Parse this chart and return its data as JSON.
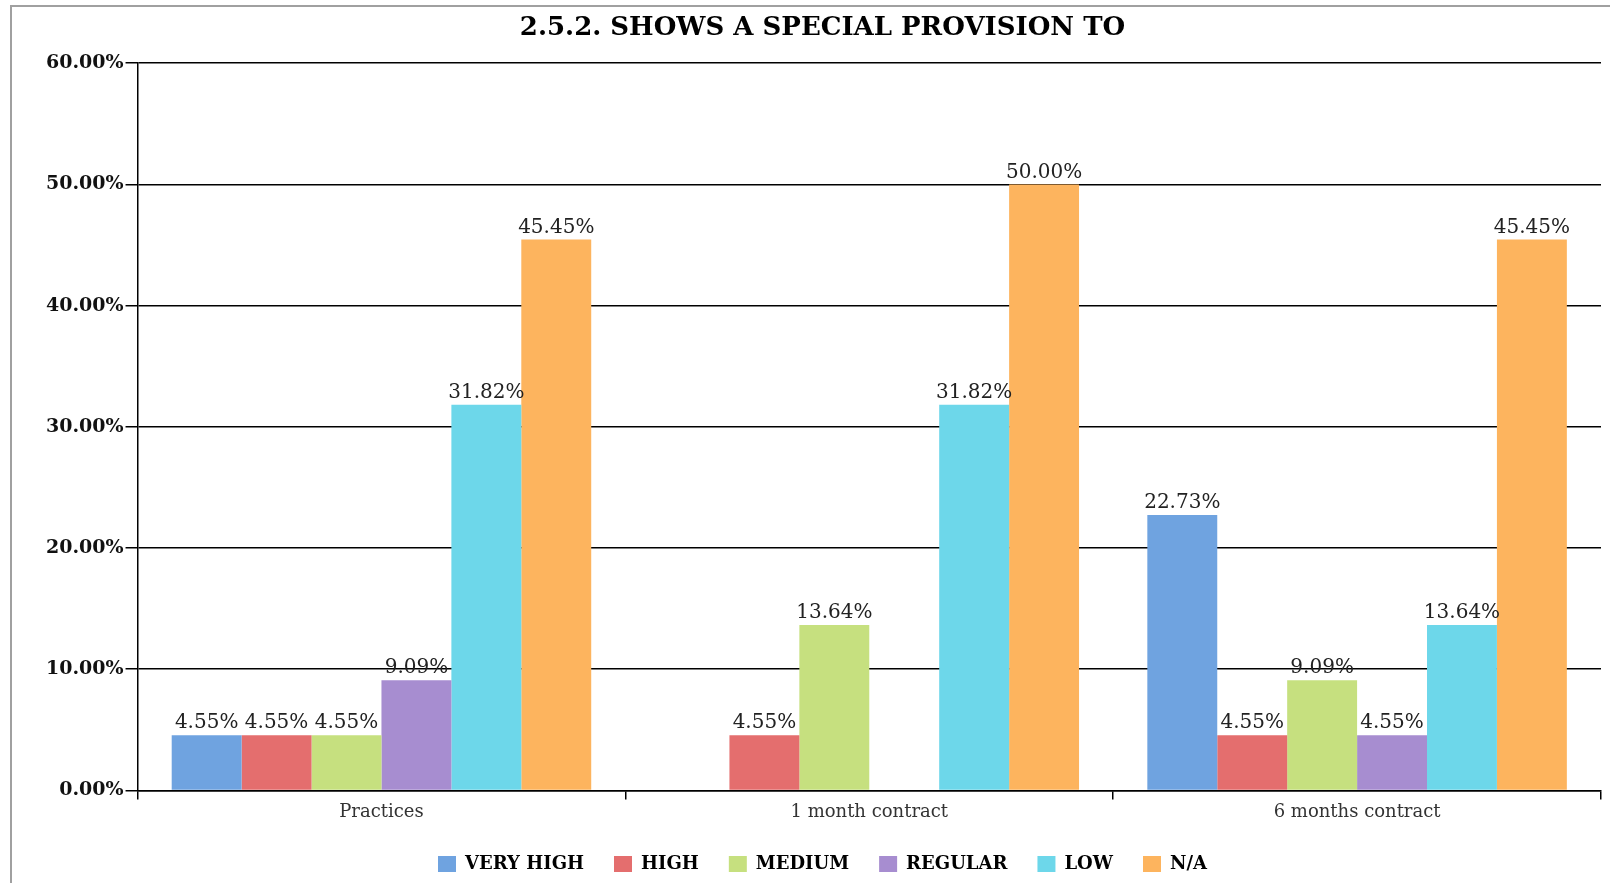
{
  "chart_data": {
    "type": "bar",
    "title": "2.5.2. SHOWS A SPECIAL PROVISION TO",
    "categories": [
      "Practices",
      "1 month contract",
      "6 months contract"
    ],
    "series": [
      {
        "name": "VERY HIGH",
        "color": "#6fa3e0",
        "values": [
          4.55,
          null,
          22.73
        ],
        "value_labels": [
          "4.55%",
          null,
          "22.73%"
        ]
      },
      {
        "name": "HIGH",
        "color": "#e46e6e",
        "values": [
          4.55,
          4.55,
          4.55
        ],
        "value_labels": [
          "4.55%",
          "4.55%",
          "4.55%"
        ]
      },
      {
        "name": "MEDIUM",
        "color": "#c6e07f",
        "values": [
          4.55,
          13.64,
          9.09
        ],
        "value_labels": [
          "4.55%",
          "13.64%",
          "9.09%"
        ]
      },
      {
        "name": "REGULAR",
        "color": "#a78dd0",
        "values": [
          9.09,
          null,
          4.55
        ],
        "value_labels": [
          "9.09%",
          null,
          "4.55%"
        ]
      },
      {
        "name": "LOW",
        "color": "#6dd7ea",
        "values": [
          31.82,
          31.82,
          13.64
        ],
        "value_labels": [
          "31.82%",
          "31.82%",
          "13.64%"
        ]
      },
      {
        "name": "N/A",
        "color": "#fdb45e",
        "values": [
          45.45,
          50.0,
          45.45
        ],
        "value_labels": [
          "45.45%",
          "50.00%",
          "45.45%"
        ]
      }
    ],
    "ylim": [
      0,
      60
    ],
    "yticks": [
      {
        "value": 0,
        "label": "0.00%"
      },
      {
        "value": 10,
        "label": "10.00%"
      },
      {
        "value": 20,
        "label": "20.00%"
      },
      {
        "value": 30,
        "label": "30.00%"
      },
      {
        "value": 40,
        "label": "40.00%"
      },
      {
        "value": 50,
        "label": "50.00%"
      },
      {
        "value": 60,
        "label": "60.00%"
      }
    ],
    "grid": "y",
    "legend": "bottom"
  }
}
